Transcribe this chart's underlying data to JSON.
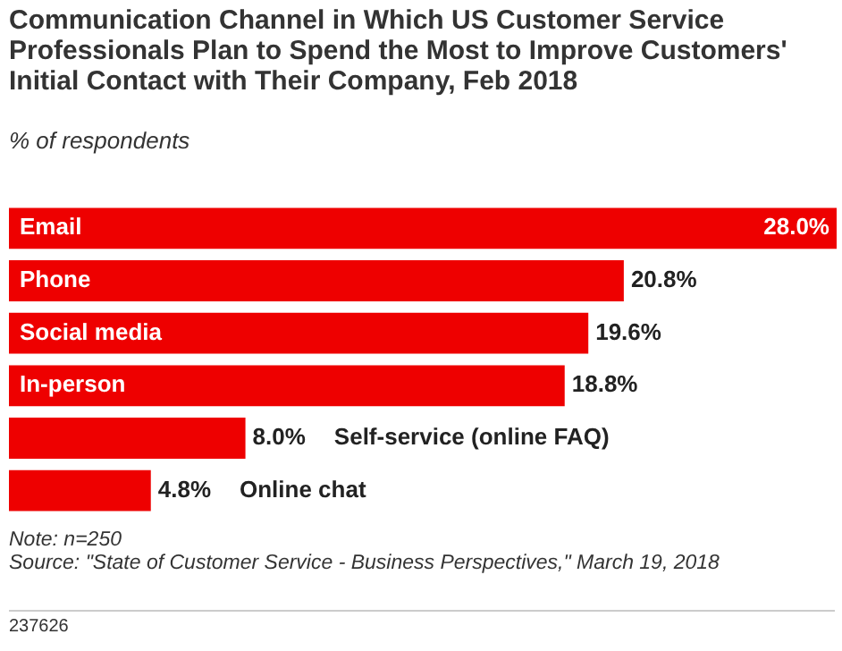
{
  "chart_data": {
    "type": "bar",
    "orientation": "horizontal",
    "title": "Communication Channel in Which US Customer Service Professionals Plan to Spend the Most to Improve Customers' Initial Contact with Their Company, Feb 2018",
    "subtitle": "% of respondents",
    "categories": [
      "Email",
      "Phone",
      "Social media",
      "In-person",
      "Self-service (online FAQ)",
      "Online chat"
    ],
    "values": [
      28.0,
      20.8,
      19.6,
      18.8,
      8.0,
      4.8
    ],
    "value_labels": [
      "28.0%",
      "20.8%",
      "19.6%",
      "18.8%",
      "8.0%",
      "4.8%"
    ],
    "color": "#ee0000",
    "annotations": [
      "Note: n=250",
      "Source: \"State of Customer Service - Business Perspectives,\" March 19, 2018",
      "237626"
    ],
    "legend": false,
    "tick_labels": "y"
  }
}
